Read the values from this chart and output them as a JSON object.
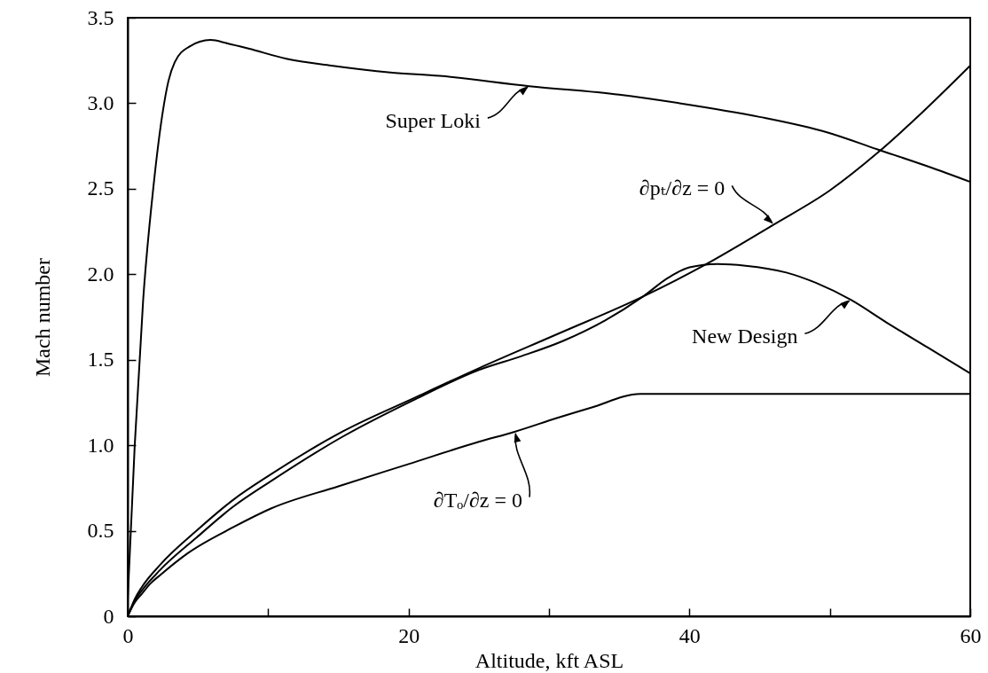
{
  "chart_data": {
    "type": "line",
    "xlabel": "Altitude, kft ASL",
    "ylabel": "Mach number",
    "xlim": [
      0,
      60
    ],
    "xticks": [
      0,
      {
        "value": 10,
        "label": null
      },
      20,
      {
        "value": 30,
        "label": null
      },
      40,
      {
        "value": 50,
        "label": null
      },
      60
    ],
    "ylim": [
      0,
      3.5
    ],
    "yticks": [
      0,
      0.5,
      {
        "value": 1,
        "label": "1.0"
      },
      1.5,
      {
        "value": 2,
        "label": "2.0"
      },
      2.5,
      {
        "value": 3,
        "label": "3.0"
      },
      3.5
    ],
    "line_style": "solid",
    "series": [
      {
        "name": "Super Loki",
        "color": "#000000",
        "x": [
          0,
          0.5,
          1.1,
          1.83,
          2.46,
          2.9,
          3.35,
          4.36,
          5.9,
          7.1,
          8.6,
          11.3,
          14.5,
          18.7,
          22.2,
          28.6,
          35,
          39.3,
          45,
          49.8,
          53.4,
          57,
          60
        ],
        "values": [
          0.1,
          1.0,
          1.85,
          2.51,
          2.93,
          3.13,
          3.24,
          3.33,
          3.37,
          3.35,
          3.32,
          3.26,
          3.22,
          3.18,
          3.16,
          3.1,
          3.05,
          3.0,
          2.92,
          2.83,
          2.73,
          2.63,
          2.54
        ]
      },
      {
        "name": "∂pₜ/∂z = 0",
        "color": "#000000",
        "x": [
          0,
          0.5,
          1,
          2.3,
          4.9,
          7.5,
          10.2,
          15.3,
          20.5,
          25,
          30.6,
          36.7,
          41,
          46,
          50,
          53.4,
          56.5,
          60
        ],
        "values": [
          0,
          0.1,
          0.17,
          0.3,
          0.5,
          0.68,
          0.83,
          1.08,
          1.28,
          1.45,
          1.65,
          1.87,
          2.05,
          2.29,
          2.49,
          2.71,
          2.94,
          3.22
        ]
      },
      {
        "name": "New Design",
        "color": "#000000",
        "x": [
          0,
          0.5,
          1,
          2.3,
          4.9,
          7.5,
          10.2,
          15.3,
          20.5,
          25,
          28,
          31,
          34,
          36.7,
          38.5,
          40,
          42,
          44,
          46.9,
          49,
          51.5,
          54,
          57,
          60
        ],
        "values": [
          0,
          0.09,
          0.15,
          0.27,
          0.46,
          0.64,
          0.79,
          1.05,
          1.27,
          1.44,
          1.52,
          1.61,
          1.73,
          1.87,
          1.98,
          2.04,
          2.06,
          2.05,
          2.01,
          1.95,
          1.85,
          1.72,
          1.57,
          1.42
        ]
      },
      {
        "name": "∂Tₒ/∂z = 0",
        "color": "#000000",
        "x": [
          0,
          0.5,
          1,
          1.6,
          2.3,
          4.3,
          7.5,
          10.2,
          15,
          20,
          25,
          27.6,
          30.6,
          33,
          36.5,
          60
        ],
        "values": [
          0,
          0.08,
          0.13,
          0.19,
          0.24,
          0.37,
          0.52,
          0.63,
          0.76,
          0.89,
          1.02,
          1.08,
          1.16,
          1.22,
          1.3,
          1.3
        ]
      }
    ]
  }
}
